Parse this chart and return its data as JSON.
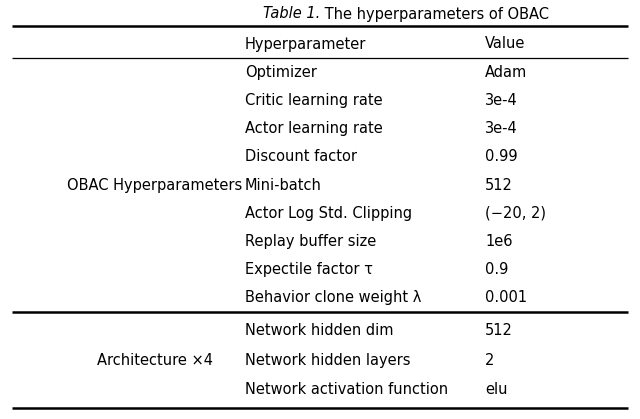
{
  "title_italic": "Table 1.",
  "title_normal": " The hyperparameters of OBAC",
  "col_headers": [
    "Hyperparameter",
    "Value"
  ],
  "section1_label": "OBAC Hyperparameters",
  "section1_rows": [
    [
      "Optimizer",
      "Adam"
    ],
    [
      "Critic learning rate",
      "3e-4"
    ],
    [
      "Actor learning rate",
      "3e-4"
    ],
    [
      "Discount factor",
      "0.99"
    ],
    [
      "Mini-batch",
      "512"
    ],
    [
      "Actor Log Std. Clipping",
      "(−20, 2)"
    ],
    [
      "Replay buffer size",
      "1e6"
    ],
    [
      "Expectile factor τ",
      "0.9"
    ],
    [
      "Behavior clone weight λ",
      "0.001"
    ]
  ],
  "section2_label": "Architecture ×4",
  "section2_rows": [
    [
      "Network hidden dim",
      "512"
    ],
    [
      "Network hidden layers",
      "2"
    ],
    [
      "Network activation function",
      "elu"
    ]
  ],
  "bg_color": "#ffffff",
  "text_color": "#000000",
  "font_size": 10.5
}
